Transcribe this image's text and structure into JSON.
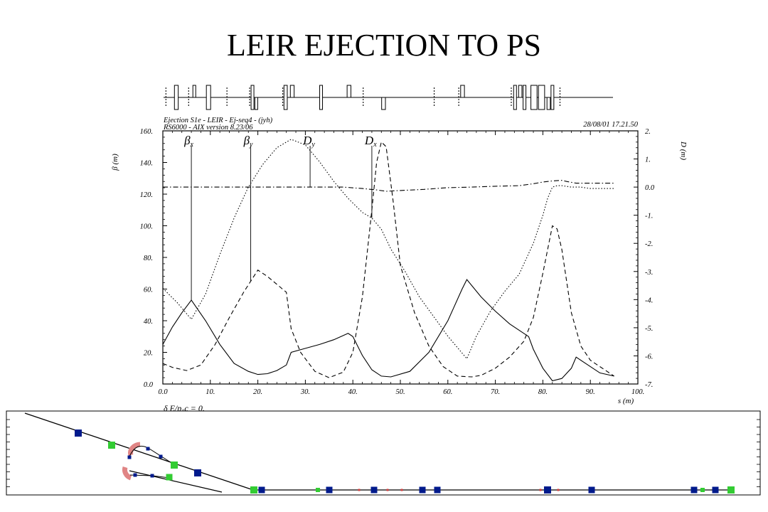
{
  "slide_title": "LEIR EJECTION TO PS",
  "header": {
    "line1": "Ejection S1e - LEIR - Ej-seq4 - (jyh)",
    "line2": "RS6000 - AIX version 8.23/06",
    "date": "28/08/01  17.21.50"
  },
  "chart_data": {
    "type": "line",
    "title": "",
    "xlabel": "s (m)",
    "ylabel": "β (m)",
    "y2label": "D (m)",
    "xlim": [
      0,
      100
    ],
    "ylim": [
      0,
      160
    ],
    "y2lim": [
      -7,
      2
    ],
    "x_ticks": [
      "0.0",
      "10.",
      "20.",
      "30.",
      "40.",
      "50.",
      "60.",
      "70.",
      "80.",
      "90.",
      "100."
    ],
    "y_ticks": [
      "0.0",
      "20.",
      "40.",
      "60.",
      "80.",
      "100.",
      "120.",
      "140.",
      "160."
    ],
    "y2_ticks": [
      "-7.",
      "-6.",
      "-5.",
      "-4.",
      "-3.",
      "-2.",
      "-1.",
      "0.0",
      "1.",
      "2."
    ],
    "footer_note": "δ E/p₀c = 0.",
    "series": [
      {
        "name": "βx",
        "label": "β",
        "sub": "x",
        "style": "solid",
        "x": [
          0,
          2,
          4,
          6,
          9,
          12,
          15,
          18,
          20,
          22,
          24,
          26,
          27,
          30,
          33,
          36,
          39,
          40,
          42,
          44,
          46,
          48,
          52,
          56,
          60,
          63,
          64,
          67,
          70,
          73,
          77,
          78,
          80,
          82,
          84,
          86,
          87,
          89,
          92,
          95
        ],
        "y": [
          25,
          36,
          45,
          53,
          40,
          25,
          13,
          8,
          6,
          6.5,
          8.5,
          12,
          20,
          22.5,
          25,
          28,
          32,
          30,
          18,
          9,
          5,
          4.5,
          8,
          20,
          40,
          60,
          66,
          55,
          46,
          38,
          30,
          22,
          10,
          2,
          3.5,
          10,
          17,
          13,
          7,
          5
        ]
      },
      {
        "name": "βy",
        "label": "β",
        "sub": "y",
        "style": "dashed",
        "x": [
          0,
          2,
          5,
          8,
          11,
          14,
          17,
          20,
          22,
          24,
          26,
          27,
          29,
          32,
          35,
          38,
          40,
          42,
          44,
          45,
          46,
          47,
          48.5,
          50,
          53,
          56,
          59,
          62,
          65,
          67,
          70,
          73,
          76,
          78,
          80,
          82,
          83,
          84,
          86,
          88,
          90,
          95
        ],
        "y": [
          13,
          10.5,
          8.5,
          12,
          25,
          42,
          58,
          72,
          68,
          63,
          58,
          35,
          20,
          8,
          4,
          7.5,
          20,
          55,
          110,
          140,
          153,
          150,
          115,
          75,
          45,
          24,
          11,
          5,
          4.5,
          5.5,
          10,
          17,
          27,
          42,
          70,
          100,
          98,
          85,
          45,
          24,
          15,
          5
        ]
      },
      {
        "name": "Dy",
        "label": "D",
        "sub": "y",
        "style": "dashdot",
        "axis": "right",
        "x": [
          0,
          10,
          20,
          30,
          38,
          42,
          45,
          47,
          50,
          55,
          60,
          65,
          70,
          75,
          78,
          80,
          82,
          84,
          85,
          87,
          95
        ],
        "y": [
          0.0,
          0.0,
          0.0,
          0.0,
          0.0,
          -0.05,
          -0.1,
          -0.15,
          -0.12,
          -0.08,
          -0.02,
          0.0,
          0.03,
          0.05,
          0.12,
          0.18,
          0.22,
          0.24,
          0.2,
          0.14,
          0.14
        ]
      },
      {
        "name": "Dx",
        "label": "D",
        "sub": "x",
        "style": "dotted",
        "axis": "right",
        "x": [
          0,
          3,
          6,
          9,
          12,
          15,
          18,
          21,
          24,
          27,
          30,
          33,
          36,
          39,
          42,
          44,
          46,
          48,
          51,
          54,
          57,
          60,
          63,
          64,
          66,
          69,
          72,
          75,
          78,
          80,
          81,
          82,
          83,
          84,
          86,
          88,
          90,
          95
        ],
        "y": [
          -3.6,
          -4.1,
          -4.7,
          -3.8,
          -2.4,
          -1.1,
          0.0,
          0.8,
          1.4,
          1.7,
          1.5,
          0.9,
          0.2,
          -0.4,
          -0.9,
          -1.1,
          -1.5,
          -2.2,
          -3.0,
          -3.9,
          -4.6,
          -5.3,
          -5.9,
          -6.1,
          -5.3,
          -4.4,
          -3.7,
          -3.1,
          -2.0,
          -1.0,
          -0.4,
          0.0,
          0.05,
          0.05,
          0.0,
          0.0,
          -0.05,
          -0.05
        ]
      }
    ],
    "markers": [
      {
        "series": "βx",
        "x": 6
      },
      {
        "series": "βy",
        "x": 18.5
      },
      {
        "series": "Dy",
        "x": 31
      },
      {
        "series": "Dx",
        "x": 44
      }
    ],
    "lattice": {
      "xlim": [
        0,
        95
      ],
      "elements": [
        {
          "type": "marker",
          "x": 0.5
        },
        {
          "type": "quad",
          "x": 2.7,
          "w": 0.8,
          "side": "both"
        },
        {
          "type": "marker",
          "x": 5.3
        },
        {
          "type": "quad",
          "x": 6.5,
          "w": 0.5,
          "side": "up"
        },
        {
          "type": "quad",
          "x": 9.5,
          "w": 0.9,
          "side": "both"
        },
        {
          "type": "marker",
          "x": 13.4
        },
        {
          "type": "marker",
          "x": 18.2
        },
        {
          "type": "quad",
          "x": 18.8,
          "w": 0.6,
          "side": "both"
        },
        {
          "type": "quad",
          "x": 19.6,
          "w": 0.6,
          "side": "down"
        },
        {
          "type": "marker",
          "x": 25.2
        },
        {
          "type": "quad",
          "x": 25.8,
          "w": 0.7,
          "side": "both"
        },
        {
          "type": "quad",
          "x": 27.2,
          "w": 0.8,
          "side": "up"
        },
        {
          "type": "quad",
          "x": 33.3,
          "w": 0.6,
          "side": "both"
        },
        {
          "type": "quad",
          "x": 39.2,
          "w": 0.8,
          "side": "up"
        },
        {
          "type": "marker",
          "x": 42.2
        },
        {
          "type": "quad",
          "x": 46.5,
          "w": 0.8,
          "side": "down"
        },
        {
          "type": "marker",
          "x": 57.2
        },
        {
          "type": "marker",
          "x": 62.4
        },
        {
          "type": "quad",
          "x": 63.2,
          "w": 0.8,
          "side": "up"
        },
        {
          "type": "marker",
          "x": 73.5
        },
        {
          "type": "quad",
          "x": 74.3,
          "w": 0.5,
          "side": "both"
        },
        {
          "type": "quad",
          "x": 75.4,
          "w": 0.7,
          "side": "up"
        },
        {
          "type": "quad",
          "x": 76.3,
          "w": 0.6,
          "side": "both"
        },
        {
          "type": "quad",
          "x": 78.3,
          "w": 1.3,
          "side": "both"
        },
        {
          "type": "quad",
          "x": 79.9,
          "w": 1.3,
          "side": "both"
        },
        {
          "type": "quad",
          "x": 81.4,
          "w": 0.7,
          "side": "down"
        },
        {
          "type": "quad",
          "x": 82.2,
          "w": 0.6,
          "side": "both"
        },
        {
          "type": "marker",
          "x": 83.8
        }
      ]
    }
  },
  "layout_panel": {
    "blue": "#001a8c",
    "green": "#33cc33",
    "arc": "#e08585"
  }
}
